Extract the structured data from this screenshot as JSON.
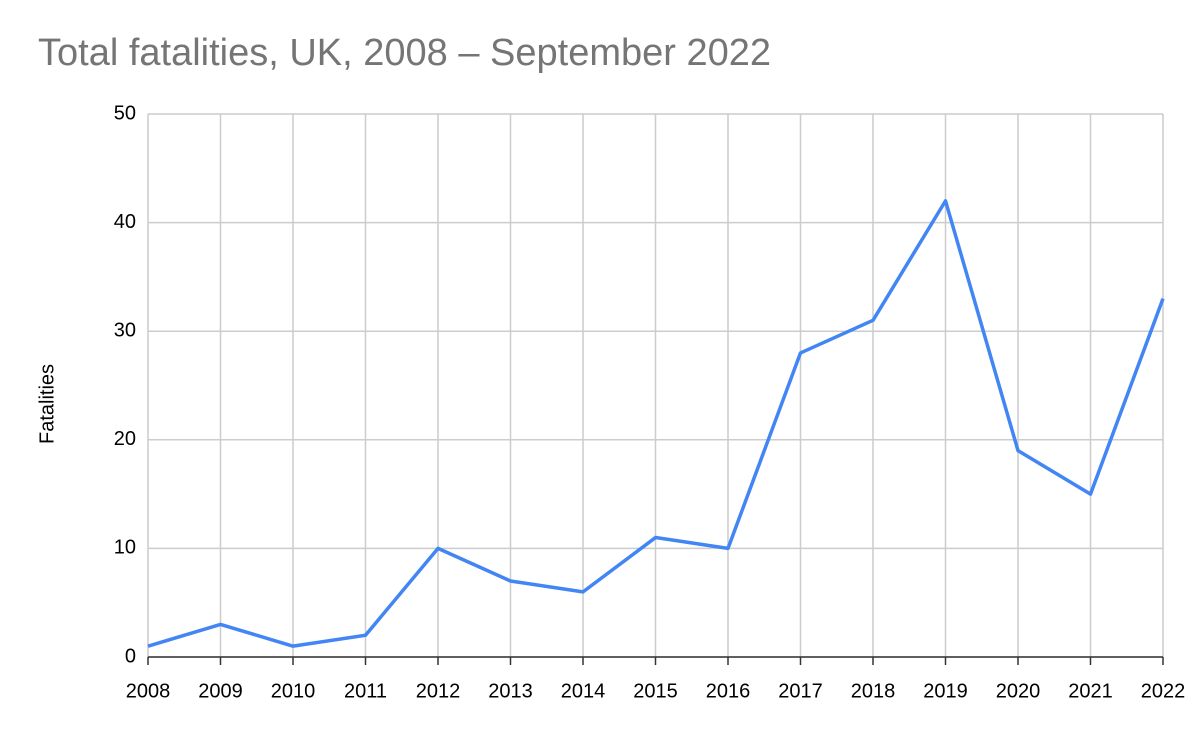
{
  "chart_data": {
    "type": "line",
    "title": "Total fatalities, UK, 2008 – September 2022",
    "y_label": "Fatalities",
    "x": [
      2008,
      2009,
      2010,
      2011,
      2012,
      2013,
      2014,
      2015,
      2016,
      2017,
      2018,
      2019,
      2020,
      2021,
      2022
    ],
    "series": [
      {
        "name": "Fatalities",
        "color": "#4285f4",
        "values": [
          1,
          3,
          1,
          2,
          10,
          7,
          6,
          11,
          10,
          28,
          31,
          42,
          19,
          15,
          33
        ]
      }
    ],
    "xlim": [
      2008,
      2022
    ],
    "xticks": [
      2008,
      2009,
      2010,
      2011,
      2012,
      2013,
      2014,
      2015,
      2016,
      2017,
      2018,
      2019,
      2020,
      2021,
      2022
    ],
    "ylim": [
      0,
      50
    ],
    "yticks": [
      0,
      10,
      20,
      30,
      40,
      50
    ],
    "grid": true
  }
}
